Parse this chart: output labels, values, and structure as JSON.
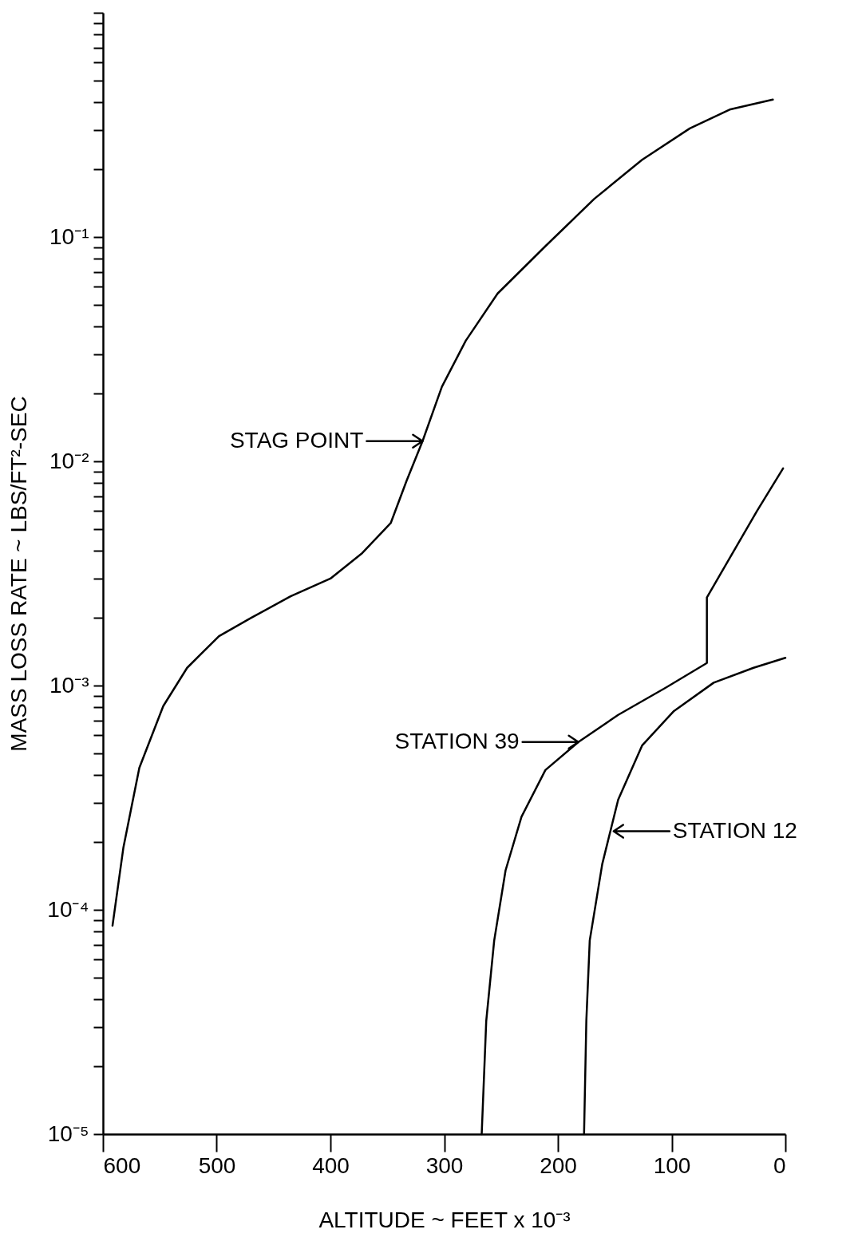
{
  "chart_data": {
    "type": "line",
    "xlabel": "ALTITUDE ~ FEET x 10⁻³",
    "ylabel": "MASS LOSS RATE ~ LBS/FT²-SEC",
    "log": "y",
    "xlim": [
      600,
      0
    ],
    "xticks": [
      600,
      500,
      400,
      300,
      200,
      100,
      0
    ],
    "ylim": [
      1e-05,
      1
    ],
    "yticks": [
      {
        "value": 1e-05,
        "label": "10⁻⁵"
      },
      {
        "value": 2e-05,
        "label": null
      },
      {
        "value": 3e-05,
        "label": null
      },
      {
        "value": 4e-05,
        "label": null
      },
      {
        "value": 5e-05,
        "label": null
      },
      {
        "value": 6e-05,
        "label": null
      },
      {
        "value": 7e-05,
        "label": null
      },
      {
        "value": 8e-05,
        "label": null
      },
      {
        "value": 9e-05,
        "label": null
      },
      {
        "value": 0.0001,
        "label": "10⁻⁴"
      },
      {
        "value": 0.0002,
        "label": null
      },
      {
        "value": 0.0003,
        "label": null
      },
      {
        "value": 0.0004,
        "label": null
      },
      {
        "value": 0.0005,
        "label": null
      },
      {
        "value": 0.0006,
        "label": null
      },
      {
        "value": 0.0007,
        "label": null
      },
      {
        "value": 0.0008,
        "label": null
      },
      {
        "value": 0.0009,
        "label": null
      },
      {
        "value": 0.001,
        "label": "10⁻³"
      },
      {
        "value": 0.002,
        "label": null
      },
      {
        "value": 0.003,
        "label": null
      },
      {
        "value": 0.004,
        "label": null
      },
      {
        "value": 0.005,
        "label": null
      },
      {
        "value": 0.006,
        "label": null
      },
      {
        "value": 0.007,
        "label": null
      },
      {
        "value": 0.008,
        "label": null
      },
      {
        "value": 0.009,
        "label": null
      },
      {
        "value": 0.01,
        "label": "10⁻²"
      },
      {
        "value": 0.02,
        "label": null
      },
      {
        "value": 0.03,
        "label": null
      },
      {
        "value": 0.04,
        "label": null
      },
      {
        "value": 0.05,
        "label": null
      },
      {
        "value": 0.06,
        "label": null
      },
      {
        "value": 0.07,
        "label": null
      },
      {
        "value": 0.08,
        "label": null
      },
      {
        "value": 0.09,
        "label": null
      },
      {
        "value": 0.1,
        "label": "10⁻¹"
      },
      {
        "value": 0.2,
        "label": null
      },
      {
        "value": 0.3,
        "label": null
      },
      {
        "value": 0.4,
        "label": null
      },
      {
        "value": 0.5,
        "label": null
      },
      {
        "value": 0.6,
        "label": null
      },
      {
        "value": 0.7,
        "label": null
      },
      {
        "value": 0.8,
        "label": null
      },
      {
        "value": 0.9,
        "label": null
      },
      {
        "value": 1,
        "label": null
      }
    ],
    "grid": false,
    "marker": "none",
    "line_style": "solid",
    "series": [
      {
        "color": "#000000",
        "x": [
          591.6,
          582,
          568,
          547,
          526,
          498,
          470,
          435,
          400,
          372,
          347,
          333,
          319,
          302,
          281,
          253,
          211,
          168,
          126,
          84,
          49,
          11
        ],
        "values": [
          8.5e-05,
          0.00019,
          0.00043,
          0.00081,
          0.0012,
          0.00166,
          0.002,
          0.0025,
          0.003,
          0.0039,
          0.0053,
          0.0082,
          0.0123,
          0.0215,
          0.0345,
          0.056,
          0.091,
          0.148,
          0.221,
          0.305,
          0.37,
          0.41
        ]
      },
      {
        "color": "#000000",
        "x": [
          267,
          263,
          256,
          246,
          232,
          211,
          182,
          147,
          105,
          69,
          69,
          49,
          25,
          2
        ],
        "values": [
          1e-05,
          3.2e-05,
          7.3e-05,
          0.00015,
          0.00026,
          0.00042,
          0.00056,
          0.00074,
          0.00098,
          0.00126,
          0.00247,
          0.0037,
          0.006,
          0.0093
        ]
      },
      {
        "color": "#000000",
        "x": [
          177,
          175,
          172,
          161,
          147,
          126,
          98,
          63,
          28,
          0
        ],
        "values": [
          1e-05,
          3.2e-05,
          7.3e-05,
          0.00016,
          0.00031,
          0.00054,
          0.00077,
          0.00103,
          0.0012,
          0.00133
        ]
      }
    ],
    "annotations": [
      {
        "text": "STAG POINT",
        "x": 319,
        "y": 0.0123
      },
      {
        "text": "STATION 39",
        "x": 182,
        "y": 0.00056
      },
      {
        "text": "STATION 12",
        "x": 151,
        "y": 0.000224
      }
    ]
  }
}
